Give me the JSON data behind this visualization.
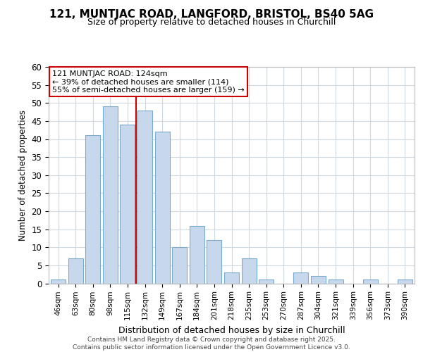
{
  "title1": "121, MUNTJAC ROAD, LANGFORD, BRISTOL, BS40 5AG",
  "title2": "Size of property relative to detached houses in Churchill",
  "xlabel": "Distribution of detached houses by size in Churchill",
  "ylabel": "Number of detached properties",
  "categories": [
    "46sqm",
    "63sqm",
    "80sqm",
    "98sqm",
    "115sqm",
    "132sqm",
    "149sqm",
    "167sqm",
    "184sqm",
    "201sqm",
    "218sqm",
    "235sqm",
    "253sqm",
    "270sqm",
    "287sqm",
    "304sqm",
    "321sqm",
    "339sqm",
    "356sqm",
    "373sqm",
    "390sqm"
  ],
  "values": [
    1,
    7,
    41,
    49,
    44,
    48,
    42,
    10,
    16,
    12,
    3,
    7,
    1,
    0,
    3,
    2,
    1,
    0,
    1,
    0,
    1
  ],
  "bar_color": "#c8d8ec",
  "bar_edge_color": "#7aaacc",
  "vline_x_idx": 4.5,
  "vline_color": "#cc0000",
  "annotation_title": "121 MUNTJAC ROAD: 124sqm",
  "annotation_line1": "← 39% of detached houses are smaller (114)",
  "annotation_line2": "55% of semi-detached houses are larger (159) →",
  "annotation_box_color": "#cc0000",
  "ylim": [
    0,
    60
  ],
  "yticks": [
    0,
    5,
    10,
    15,
    20,
    25,
    30,
    35,
    40,
    45,
    50,
    55,
    60
  ],
  "footer": "Contains HM Land Registry data © Crown copyright and database right 2025.\nContains public sector information licensed under the Open Government Licence v3.0.",
  "bg_color": "#ffffff",
  "plot_bg_color": "#ffffff",
  "grid_color": "#d0d8e0"
}
